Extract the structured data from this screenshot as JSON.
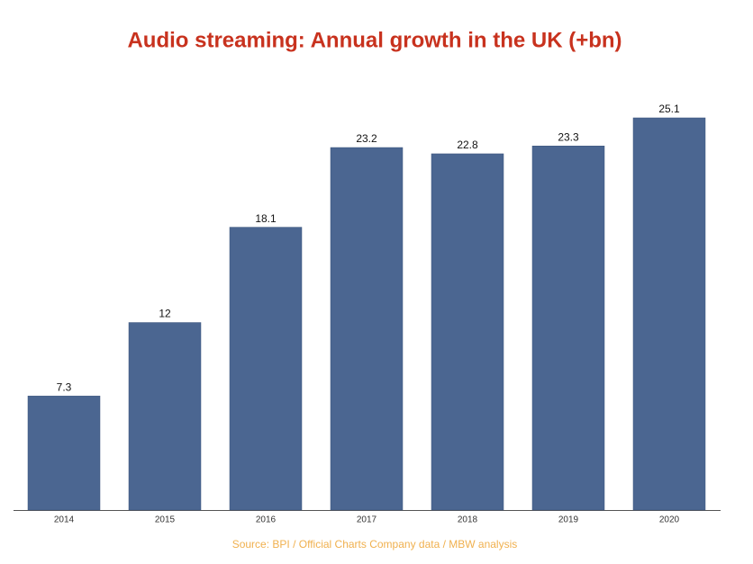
{
  "chart_data": {
    "type": "bar",
    "title": "Audio streaming: Annual growth in the UK (+bn)",
    "categories": [
      "2014",
      "2015",
      "2016",
      "2017",
      "2018",
      "2019",
      "2020"
    ],
    "values": [
      7.3,
      12,
      18.1,
      23.2,
      22.8,
      23.3,
      25.1
    ],
    "color": "#4b6691",
    "source": "Source: BPI / Official Charts Company data / MBW analysis"
  }
}
